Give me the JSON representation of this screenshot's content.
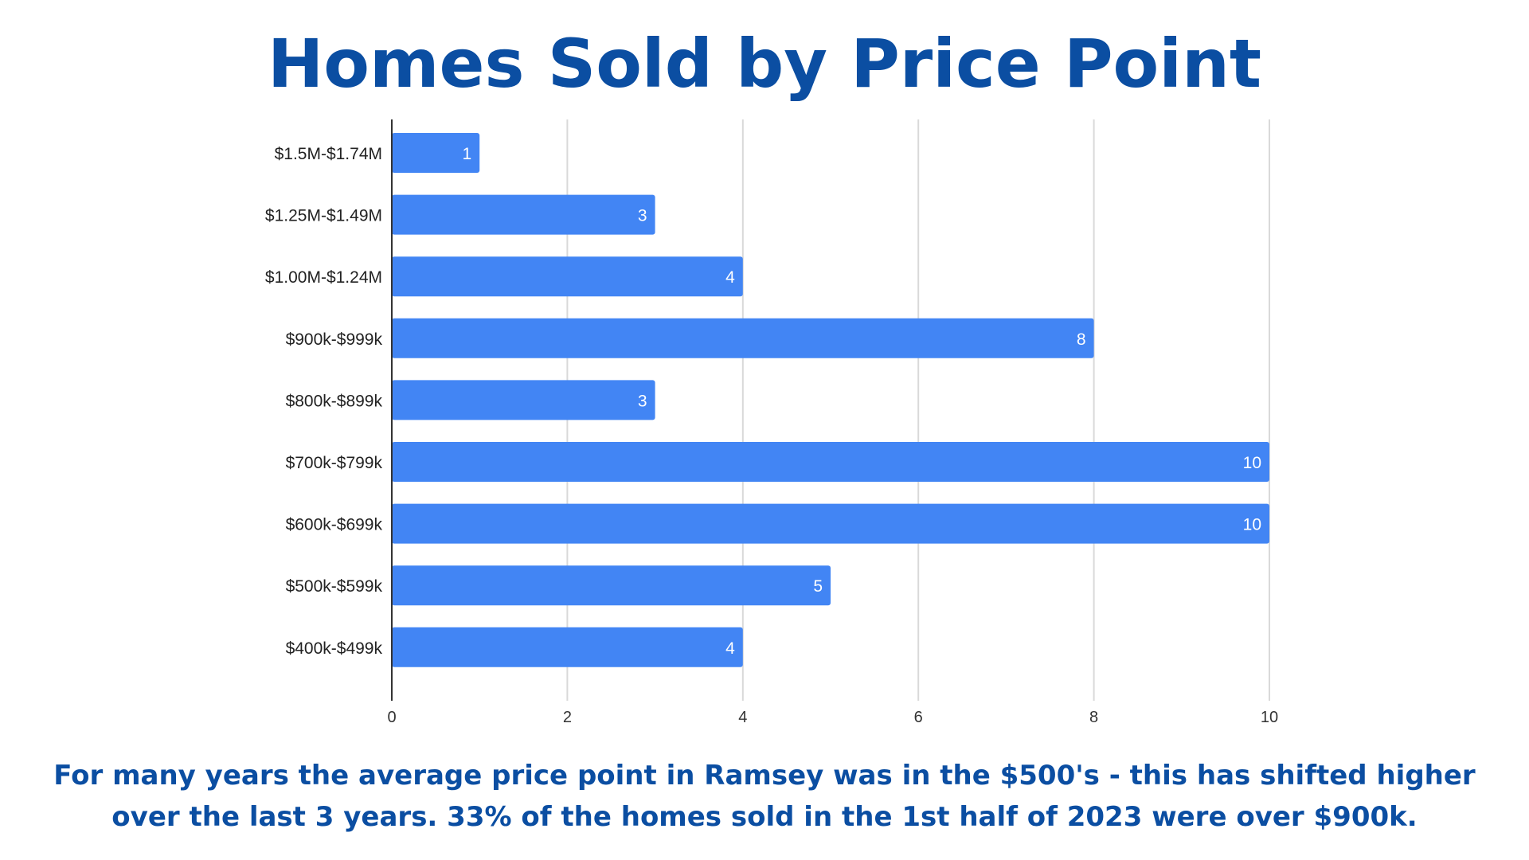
{
  "title": "Homes Sold by Price Point",
  "caption": {
    "line1": "For many years the average price point in Ramsey was in the $500's - this has shifted higher",
    "line2": "over the last 3 years.  33% of the homes sold in the 1st half of 2023 were over $900k."
  },
  "colors": {
    "bar": "#4285f4",
    "title": "#0b4ea2",
    "grid": "#d9d9d9",
    "axis": "#333333",
    "bar_label": "#ffffff"
  },
  "chart_data": {
    "type": "bar",
    "orientation": "horizontal",
    "categories": [
      "$1.5M-$1.74M",
      "$1.25M-$1.49M",
      "$1.00M-$1.24M",
      "$900k-$999k",
      "$800k-$899k",
      "$700k-$799k",
      "$600k-$699k",
      "$500k-$599k",
      "$400k-$499k"
    ],
    "values": [
      1,
      3,
      4,
      8,
      3,
      10,
      10,
      5,
      4
    ],
    "data_labels": [
      "1",
      "3",
      "4",
      "8",
      "3",
      "10",
      "10",
      "5",
      "4"
    ],
    "xlim": [
      0,
      10
    ],
    "xticks": [
      0,
      2,
      4,
      6,
      8,
      10
    ],
    "xlabel": "",
    "ylabel": "",
    "grid": true,
    "legend": "none"
  }
}
